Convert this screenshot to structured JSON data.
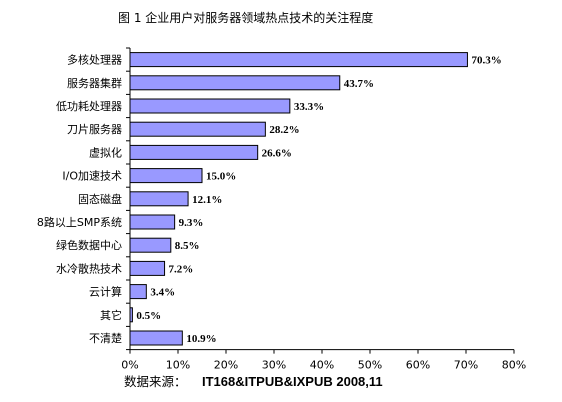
{
  "chart_data": {
    "type": "bar",
    "orientation": "horizontal",
    "title": "图 1    企业用户对服务器领域热点技术的关注程度",
    "categories": [
      "多核处理器",
      "服务器集群",
      "低功耗处理器",
      "刀片服务器",
      "虚拟化",
      "I/O加速技术",
      "固态磁盘",
      "8路以上SMP系统",
      "绿色数据中心",
      "水冷散热技术",
      "云计算",
      "其它",
      "不清楚"
    ],
    "values": [
      70.3,
      43.7,
      33.3,
      28.2,
      26.6,
      15.0,
      12.1,
      9.3,
      8.5,
      7.2,
      3.4,
      0.5,
      10.9
    ],
    "value_labels": [
      "70.3%",
      "43.7%",
      "33.3%",
      "28.2%",
      "26.6%",
      "15.0%",
      "12.1%",
      "9.3%",
      "8.5%",
      "7.2%",
      "3.4%",
      "0.5%",
      "10.9%"
    ],
    "xlim": [
      0,
      80
    ],
    "xticks": [
      "0%",
      "10%",
      "20%",
      "30%",
      "40%",
      "50%",
      "60%",
      "70%",
      "80%"
    ],
    "grid": false,
    "bar_color": "#9999ff",
    "bar_edge_color": "#000000"
  },
  "source": {
    "label": "数据来源：",
    "text": "IT168&ITPUB&IXPUB 2008,11"
  }
}
